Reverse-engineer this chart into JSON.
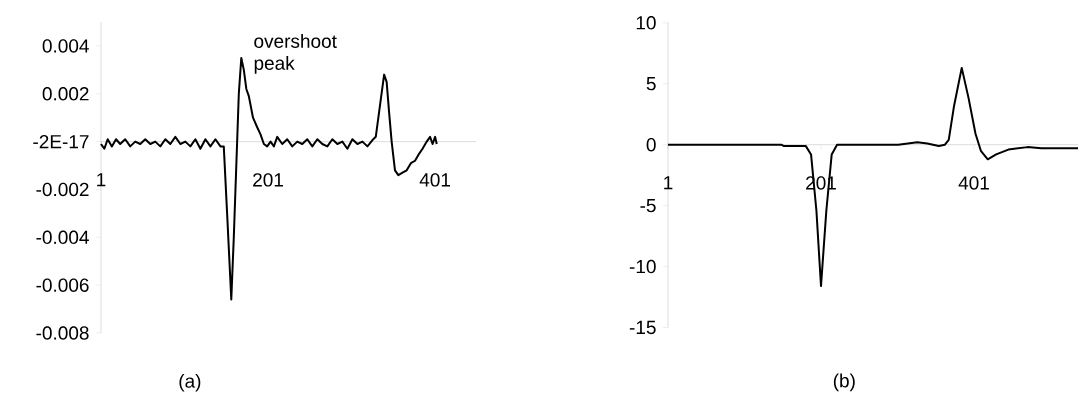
{
  "chart_data": [
    {
      "type": "line",
      "color": "#000000",
      "x": [
        1,
        5,
        9,
        14,
        19,
        24,
        30,
        36,
        42,
        48,
        54,
        60,
        66,
        72,
        78,
        84,
        90,
        96,
        102,
        108,
        114,
        120,
        126,
        132,
        138,
        144,
        148,
        152,
        157,
        160,
        164,
        166,
        169,
        172,
        175,
        178,
        183,
        188,
        192,
        196,
        200,
        204,
        208,
        212,
        218,
        224,
        230,
        236,
        242,
        248,
        254,
        260,
        266,
        272,
        278,
        284,
        290,
        296,
        302,
        308,
        314,
        320,
        327,
        330,
        335,
        340,
        343,
        346,
        349,
        353,
        357,
        362,
        367,
        372,
        377,
        382,
        386,
        391,
        395,
        398,
        401,
        403
      ],
      "values": [
        -0.0001,
        -0.0003,
        0.0001,
        -0.0002,
        0.0001,
        -0.0001,
        0.0001,
        -0.0002,
        0.0,
        -0.0001,
        0.0001,
        -0.0001,
        0.0,
        -0.0002,
        0.0001,
        -0.0001,
        0.0002,
        -0.0001,
        0.0,
        -0.0002,
        0.0001,
        -0.0003,
        0.0001,
        -0.0002,
        0.0001,
        -0.0002,
        -0.0002,
        -0.003,
        -0.0066,
        -0.004,
        0.0,
        0.002,
        0.0035,
        0.003,
        0.0022,
        0.0019,
        0.001,
        0.0006,
        0.0003,
        -0.0001,
        -0.0002,
        0.0,
        -0.0002,
        0.0002,
        -0.0001,
        0.0001,
        -0.0002,
        0.0,
        -0.0001,
        0.0001,
        -0.0002,
        0.0001,
        -0.0001,
        -0.0002,
        0.0001,
        -0.0001,
        0.0,
        -0.0003,
        0.0001,
        -0.0001,
        0.0,
        -0.0002,
        0.0001,
        0.0002,
        0.0015,
        0.0028,
        0.0025,
        0.0012,
        0.0,
        -0.0012,
        -0.0014,
        -0.0013,
        -0.0012,
        -0.0009,
        -0.0008,
        -0.0005,
        -0.0003,
        0.0,
        0.0002,
        -0.0001,
        0.0002,
        -0.0001
      ],
      "xlim": [
        1,
        450
      ],
      "ylim": [
        -0.008,
        0.005
      ],
      "xticks": [
        1,
        201,
        401
      ],
      "yticks": [
        {
          "value": -0.008,
          "label": "-0.008"
        },
        {
          "value": -0.006,
          "label": "-0.006"
        },
        {
          "value": -0.004,
          "label": "-0.004"
        },
        {
          "value": -0.002,
          "label": "-0.002"
        },
        {
          "value": -2e-17,
          "label": "-2E-17"
        },
        {
          "value": 0.002,
          "label": "0.002"
        },
        {
          "value": 0.004,
          "label": "0.004"
        }
      ],
      "annotations": [
        {
          "text": "overshoot peak",
          "x": 169,
          "y": 0.0035
        },
        "(a)"
      ]
    },
    {
      "type": "line",
      "color": "#000000",
      "x": [
        1,
        149,
        152,
        181,
        188,
        195,
        201,
        208,
        215,
        222,
        302,
        327,
        340,
        355,
        363,
        368,
        375,
        385,
        394,
        403,
        410,
        419,
        430,
        446,
        471,
        489,
        537
      ],
      "values": [
        0,
        0,
        -0.1,
        -0.1,
        -0.8,
        -5.4,
        -11.6,
        -5.4,
        -0.8,
        0,
        0,
        0.2,
        0.1,
        -0.1,
        0,
        0.4,
        3.2,
        6.3,
        3.8,
        0.9,
        -0.5,
        -1.2,
        -0.8,
        -0.4,
        -0.2,
        -0.3,
        -0.3
      ],
      "xlim": [
        1,
        537
      ],
      "ylim": [
        -15,
        10
      ],
      "xticks": [
        1,
        201,
        401
      ],
      "yticks": [
        -15,
        -10,
        -5,
        0,
        5,
        10
      ],
      "annotations": [
        "(b)"
      ]
    }
  ]
}
